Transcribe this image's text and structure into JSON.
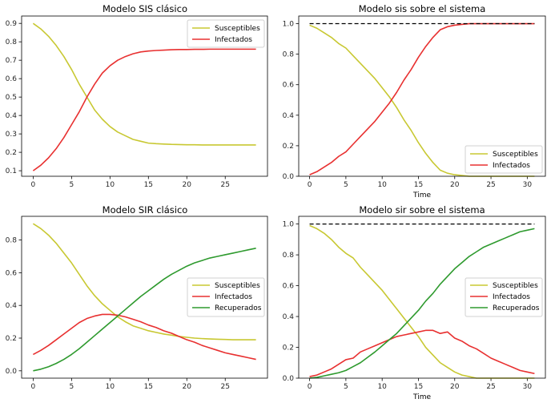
{
  "chart_data": [
    {
      "type": "line",
      "title": "Modelo SIS clásico",
      "xlabel": "",
      "ylabel": "",
      "xlim": [
        -1.5,
        30.5
      ],
      "ylim": [
        0.07,
        0.94
      ],
      "xticks": [
        0,
        5,
        10,
        15,
        20,
        25
      ],
      "xtick_labels": [
        "0",
        "5",
        "10",
        "15",
        "20",
        "25"
      ],
      "yticks": [
        0.1,
        0.2,
        0.3,
        0.4,
        0.5,
        0.6,
        0.7,
        0.8,
        0.9
      ],
      "ytick_labels": [
        "0.1",
        "0.2",
        "0.3",
        "0.4",
        "0.5",
        "0.6",
        "0.7",
        "0.8",
        "0.9"
      ],
      "legend_position": "top-right",
      "series": [
        {
          "name": "Susceptibles",
          "color": "#c8c832",
          "x": [
            0,
            1,
            2,
            3,
            4,
            5,
            6,
            7,
            8,
            9,
            10,
            11,
            12,
            13,
            14,
            15,
            16,
            17,
            18,
            19,
            20,
            21,
            22,
            23,
            24,
            25,
            26,
            27,
            28,
            29
          ],
          "values": [
            0.9,
            0.87,
            0.83,
            0.78,
            0.72,
            0.65,
            0.57,
            0.5,
            0.43,
            0.38,
            0.34,
            0.31,
            0.29,
            0.27,
            0.26,
            0.25,
            0.247,
            0.245,
            0.243,
            0.242,
            0.241,
            0.241,
            0.24,
            0.24,
            0.24,
            0.24,
            0.24,
            0.24,
            0.24,
            0.24
          ]
        },
        {
          "name": "Infectados",
          "color": "#e83030",
          "x": [
            0,
            1,
            2,
            3,
            4,
            5,
            6,
            7,
            8,
            9,
            10,
            11,
            12,
            13,
            14,
            15,
            16,
            17,
            18,
            19,
            20,
            21,
            22,
            23,
            24,
            25,
            26,
            27,
            28,
            29
          ],
          "values": [
            0.1,
            0.13,
            0.17,
            0.22,
            0.28,
            0.35,
            0.42,
            0.5,
            0.57,
            0.63,
            0.67,
            0.7,
            0.72,
            0.735,
            0.745,
            0.75,
            0.753,
            0.755,
            0.757,
            0.758,
            0.758,
            0.759,
            0.759,
            0.76,
            0.76,
            0.76,
            0.76,
            0.76,
            0.76,
            0.76
          ]
        }
      ]
    },
    {
      "type": "line",
      "title": "Modelo sis sobre el sistema",
      "xlabel": "Time",
      "ylabel": "",
      "xlim": [
        -1.5,
        32.5
      ],
      "ylim": [
        0,
        1.05
      ],
      "xticks": [
        0,
        5,
        10,
        15,
        20,
        25,
        30
      ],
      "xtick_labels": [
        "0",
        "5",
        "10",
        "15",
        "20",
        "25",
        "30"
      ],
      "yticks": [
        0,
        0.2,
        0.4,
        0.6,
        0.8,
        1.0
      ],
      "ytick_labels": [
        "0.0",
        "0.2",
        "0.4",
        "0.6",
        "0.8",
        "1.0"
      ],
      "legend_position": "lower-right",
      "series": [
        {
          "name": "Susceptibles",
          "color": "#c8c832",
          "x": [
            0,
            1,
            2,
            3,
            4,
            5,
            6,
            7,
            8,
            9,
            10,
            11,
            12,
            13,
            14,
            15,
            16,
            17,
            18,
            19,
            20,
            21,
            22,
            23,
            24,
            25,
            26,
            27,
            28,
            29,
            30,
            31
          ],
          "values": [
            0.99,
            0.97,
            0.94,
            0.91,
            0.87,
            0.84,
            0.79,
            0.74,
            0.69,
            0.64,
            0.58,
            0.52,
            0.45,
            0.37,
            0.3,
            0.22,
            0.15,
            0.09,
            0.04,
            0.02,
            0.01,
            0.005,
            0,
            0,
            0,
            0,
            0,
            0,
            0,
            0,
            0,
            0
          ]
        },
        {
          "name": "Infectados",
          "color": "#e83030",
          "x": [
            0,
            1,
            2,
            3,
            4,
            5,
            6,
            7,
            8,
            9,
            10,
            11,
            12,
            13,
            14,
            15,
            16,
            17,
            18,
            19,
            20,
            21,
            22,
            23,
            24,
            25,
            26,
            27,
            28,
            29,
            30,
            31
          ],
          "values": [
            0.01,
            0.03,
            0.06,
            0.09,
            0.13,
            0.16,
            0.21,
            0.26,
            0.31,
            0.36,
            0.42,
            0.48,
            0.55,
            0.63,
            0.7,
            0.78,
            0.85,
            0.91,
            0.96,
            0.98,
            0.99,
            0.995,
            1.0,
            1.0,
            1.0,
            1.0,
            1.0,
            1.0,
            1.0,
            1.0,
            1.0,
            1.0
          ]
        },
        {
          "color": "#000000",
          "dashed": true,
          "x": [
            0,
            31
          ],
          "values": [
            1.0,
            1.0
          ]
        }
      ]
    },
    {
      "type": "line",
      "title": "Modelo SIR clásico",
      "xlabel": "",
      "ylabel": "",
      "xlim": [
        -1.5,
        30.5
      ],
      "ylim": [
        -0.045,
        0.945
      ],
      "xticks": [
        0,
        5,
        10,
        15,
        20,
        25
      ],
      "xtick_labels": [
        "0",
        "5",
        "10",
        "15",
        "20",
        "25"
      ],
      "yticks": [
        0,
        0.2,
        0.4,
        0.6,
        0.8
      ],
      "ytick_labels": [
        "0.0",
        "0.2",
        "0.4",
        "0.6",
        "0.8"
      ],
      "legend_position": "center-right",
      "series": [
        {
          "name": "Susceptibles",
          "color": "#c8c832",
          "x": [
            0,
            1,
            2,
            3,
            4,
            5,
            6,
            7,
            8,
            9,
            10,
            11,
            12,
            13,
            14,
            15,
            16,
            17,
            18,
            19,
            20,
            21,
            22,
            23,
            24,
            25,
            26,
            27,
            28,
            29
          ],
          "values": [
            0.9,
            0.87,
            0.83,
            0.78,
            0.72,
            0.66,
            0.59,
            0.52,
            0.46,
            0.41,
            0.37,
            0.33,
            0.3,
            0.275,
            0.26,
            0.245,
            0.235,
            0.225,
            0.218,
            0.21,
            0.205,
            0.2,
            0.197,
            0.195,
            0.193,
            0.192,
            0.19,
            0.19,
            0.19,
            0.19
          ]
        },
        {
          "name": "Infectados",
          "color": "#e83030",
          "x": [
            0,
            1,
            2,
            3,
            4,
            5,
            6,
            7,
            8,
            9,
            10,
            11,
            12,
            13,
            14,
            15,
            16,
            17,
            18,
            19,
            20,
            21,
            22,
            23,
            24,
            25,
            26,
            27,
            28,
            29
          ],
          "values": [
            0.1,
            0.125,
            0.155,
            0.19,
            0.225,
            0.26,
            0.295,
            0.32,
            0.335,
            0.345,
            0.345,
            0.34,
            0.33,
            0.315,
            0.3,
            0.28,
            0.265,
            0.245,
            0.23,
            0.21,
            0.19,
            0.175,
            0.155,
            0.14,
            0.125,
            0.11,
            0.1,
            0.09,
            0.08,
            0.07
          ]
        },
        {
          "name": "Recuperados",
          "color": "#2e9a2e",
          "x": [
            0,
            1,
            2,
            3,
            4,
            5,
            6,
            7,
            8,
            9,
            10,
            11,
            12,
            13,
            14,
            15,
            16,
            17,
            18,
            19,
            20,
            21,
            22,
            23,
            24,
            25,
            26,
            27,
            28,
            29
          ],
          "values": [
            0.0,
            0.01,
            0.025,
            0.045,
            0.07,
            0.1,
            0.135,
            0.175,
            0.215,
            0.255,
            0.295,
            0.335,
            0.375,
            0.415,
            0.455,
            0.49,
            0.525,
            0.56,
            0.59,
            0.615,
            0.64,
            0.66,
            0.675,
            0.69,
            0.7,
            0.71,
            0.72,
            0.73,
            0.74,
            0.75
          ]
        }
      ]
    },
    {
      "type": "line",
      "title": "Modelo sir sobre el sistema",
      "xlabel": "Time",
      "ylabel": "",
      "xlim": [
        -1.5,
        32.5
      ],
      "ylim": [
        0,
        1.05
      ],
      "xticks": [
        0,
        5,
        10,
        15,
        20,
        25,
        30
      ],
      "xtick_labels": [
        "0",
        "5",
        "10",
        "15",
        "20",
        "25",
        "30"
      ],
      "yticks": [
        0,
        0.2,
        0.4,
        0.6,
        0.8,
        1.0
      ],
      "ytick_labels": [
        "0.0",
        "0.2",
        "0.4",
        "0.6",
        "0.8",
        "1.0"
      ],
      "legend_position": "center-right",
      "series": [
        {
          "name": "Susceptibles",
          "color": "#c8c832",
          "x": [
            0,
            1,
            2,
            3,
            4,
            5,
            6,
            7,
            8,
            9,
            10,
            11,
            12,
            13,
            14,
            15,
            16,
            17,
            18,
            19,
            20,
            21,
            22,
            23,
            24,
            25,
            26,
            27,
            28,
            29,
            30,
            31
          ],
          "values": [
            0.99,
            0.97,
            0.94,
            0.9,
            0.85,
            0.81,
            0.78,
            0.72,
            0.67,
            0.62,
            0.57,
            0.51,
            0.45,
            0.39,
            0.33,
            0.27,
            0.2,
            0.15,
            0.1,
            0.07,
            0.04,
            0.02,
            0.01,
            0,
            0,
            0,
            0,
            0,
            0,
            0,
            0,
            0
          ]
        },
        {
          "name": "Infectados",
          "color": "#e83030",
          "x": [
            0,
            1,
            2,
            3,
            4,
            5,
            6,
            7,
            8,
            9,
            10,
            11,
            12,
            13,
            14,
            15,
            16,
            17,
            18,
            19,
            20,
            21,
            22,
            23,
            24,
            25,
            26,
            27,
            28,
            29,
            30,
            31
          ],
          "values": [
            0.01,
            0.02,
            0.04,
            0.06,
            0.09,
            0.12,
            0.13,
            0.17,
            0.19,
            0.21,
            0.23,
            0.25,
            0.27,
            0.28,
            0.29,
            0.3,
            0.31,
            0.31,
            0.29,
            0.3,
            0.26,
            0.24,
            0.21,
            0.19,
            0.16,
            0.13,
            0.11,
            0.09,
            0.07,
            0.05,
            0.04,
            0.03
          ]
        },
        {
          "name": "Recuperados",
          "color": "#2e9a2e",
          "x": [
            0,
            1,
            2,
            3,
            4,
            5,
            6,
            7,
            8,
            9,
            10,
            11,
            12,
            13,
            14,
            15,
            16,
            17,
            18,
            19,
            20,
            21,
            22,
            23,
            24,
            25,
            26,
            27,
            28,
            29,
            30,
            31
          ],
          "values": [
            0.0,
            0.005,
            0.015,
            0.025,
            0.035,
            0.05,
            0.075,
            0.1,
            0.135,
            0.17,
            0.21,
            0.25,
            0.29,
            0.34,
            0.39,
            0.44,
            0.5,
            0.55,
            0.61,
            0.66,
            0.71,
            0.75,
            0.79,
            0.82,
            0.85,
            0.87,
            0.89,
            0.91,
            0.93,
            0.95,
            0.96,
            0.97
          ]
        },
        {
          "color": "#000000",
          "dashed": true,
          "x": [
            0,
            31
          ],
          "values": [
            1.0,
            1.0
          ]
        }
      ]
    }
  ]
}
